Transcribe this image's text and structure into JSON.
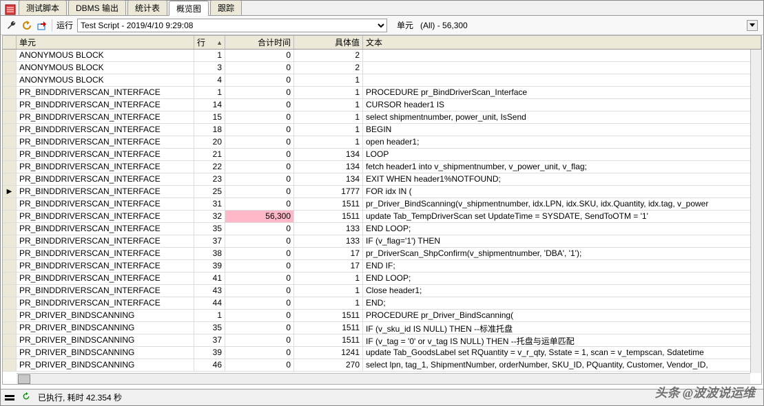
{
  "tabs": [
    "测试脚本",
    "DBMS 输出",
    "统计表",
    "概览图",
    "跟踪"
  ],
  "active_tab_index": 3,
  "toolbar": {
    "run_label": "运行",
    "run_dropdown": "Test Script - 2019/4/10 9:29:08",
    "unit_label": "单元",
    "unit_value": "(All) - 56,300"
  },
  "columns": {
    "unit": "单元",
    "line": "行",
    "total": "合计时间",
    "val": "具体值",
    "text": "文本"
  },
  "rows": [
    {
      "unit": "ANONYMOUS BLOCK",
      "line": "1",
      "total": "0",
      "val": "2",
      "text": ""
    },
    {
      "unit": "ANONYMOUS BLOCK",
      "line": "3",
      "total": "0",
      "val": "2",
      "text": ""
    },
    {
      "unit": "ANONYMOUS BLOCK",
      "line": "4",
      "total": "0",
      "val": "1",
      "text": ""
    },
    {
      "unit": "PR_BINDDRIVERSCAN_INTERFACE",
      "line": "1",
      "total": "0",
      "val": "1",
      "text": "PROCEDURE pr_BindDriverScan_Interface"
    },
    {
      "unit": "PR_BINDDRIVERSCAN_INTERFACE",
      "line": "14",
      "total": "0",
      "val": "1",
      "text": "CURSOR header1 IS"
    },
    {
      "unit": "PR_BINDDRIVERSCAN_INTERFACE",
      "line": "15",
      "total": "0",
      "val": "1",
      "text": "select shipmentnumber, power_unit, IsSend"
    },
    {
      "unit": "PR_BINDDRIVERSCAN_INTERFACE",
      "line": "18",
      "total": "0",
      "val": "1",
      "text": "BEGIN"
    },
    {
      "unit": "PR_BINDDRIVERSCAN_INTERFACE",
      "line": "20",
      "total": "0",
      "val": "1",
      "text": "open header1;"
    },
    {
      "unit": "PR_BINDDRIVERSCAN_INTERFACE",
      "line": "21",
      "total": "0",
      "val": "134",
      "text": "LOOP"
    },
    {
      "unit": "PR_BINDDRIVERSCAN_INTERFACE",
      "line": "22",
      "total": "0",
      "val": "134",
      "text": "fetch header1 into v_shipmentnumber, v_power_unit, v_flag;"
    },
    {
      "unit": "PR_BINDDRIVERSCAN_INTERFACE",
      "line": "23",
      "total": "0",
      "val": "134",
      "text": "EXIT WHEN header1%NOTFOUND;"
    },
    {
      "unit": "PR_BINDDRIVERSCAN_INTERFACE",
      "line": "25",
      "total": "0",
      "val": "1777",
      "text": "FOR idx IN (",
      "ptr": true
    },
    {
      "unit": "PR_BINDDRIVERSCAN_INTERFACE",
      "line": "31",
      "total": "0",
      "val": "1511",
      "text": "pr_Driver_BindScanning(v_shipmentnumber, idx.LPN, idx.SKU, idx.Quantity, idx.tag, v_power"
    },
    {
      "unit": "PR_BINDDRIVERSCAN_INTERFACE",
      "line": "32",
      "total": "56,300",
      "val": "1511",
      "text": "update Tab_TempDriverScan set UpdateTime = SYSDATE, SendToOTM = '1'",
      "hl": true
    },
    {
      "unit": "PR_BINDDRIVERSCAN_INTERFACE",
      "line": "35",
      "total": "0",
      "val": "133",
      "text": "END LOOP;"
    },
    {
      "unit": "PR_BINDDRIVERSCAN_INTERFACE",
      "line": "37",
      "total": "0",
      "val": "133",
      "text": "IF (v_flag='1') THEN"
    },
    {
      "unit": "PR_BINDDRIVERSCAN_INTERFACE",
      "line": "38",
      "total": "0",
      "val": "17",
      "text": "pr_DriverScan_ShpConfirm(v_shipmentnumber, 'DBA', '1');"
    },
    {
      "unit": "PR_BINDDRIVERSCAN_INTERFACE",
      "line": "39",
      "total": "0",
      "val": "17",
      "text": "END IF;"
    },
    {
      "unit": "PR_BINDDRIVERSCAN_INTERFACE",
      "line": "41",
      "total": "0",
      "val": "1",
      "text": "END LOOP;"
    },
    {
      "unit": "PR_BINDDRIVERSCAN_INTERFACE",
      "line": "43",
      "total": "0",
      "val": "1",
      "text": "Close header1;"
    },
    {
      "unit": "PR_BINDDRIVERSCAN_INTERFACE",
      "line": "44",
      "total": "0",
      "val": "1",
      "text": "END;"
    },
    {
      "unit": "PR_DRIVER_BINDSCANNING",
      "line": "1",
      "total": "0",
      "val": "1511",
      "text": "PROCEDURE pr_Driver_BindScanning("
    },
    {
      "unit": "PR_DRIVER_BINDSCANNING",
      "line": "35",
      "total": "0",
      "val": "1511",
      "text": "IF (v_sku_id IS NULL) THEN   --标准托盘"
    },
    {
      "unit": "PR_DRIVER_BINDSCANNING",
      "line": "37",
      "total": "0",
      "val": "1511",
      "text": "IF (v_tag = '0' or v_tag IS NULL) THEN   --托盘与运单匹配"
    },
    {
      "unit": "PR_DRIVER_BINDSCANNING",
      "line": "39",
      "total": "0",
      "val": "1241",
      "text": "update Tab_GoodsLabel set RQuantity = v_r_qty, Sstate = 1, scan = v_tempscan, Sdatetime"
    },
    {
      "unit": "PR_DRIVER_BINDSCANNING",
      "line": "46",
      "total": "0",
      "val": "270",
      "text": "select lpn, tag_1, ShipmentNumber, orderNumber, SKU_ID, PQuantity, Customer, Vendor_ID,"
    }
  ],
  "status": {
    "text": "已执行, 耗时 42.354 秒"
  },
  "watermark": "头条 @波波说运维",
  "colors": {
    "highlight_bg": "#ffb8c8",
    "header_bg": "#ece9d8",
    "border": "#999999"
  }
}
